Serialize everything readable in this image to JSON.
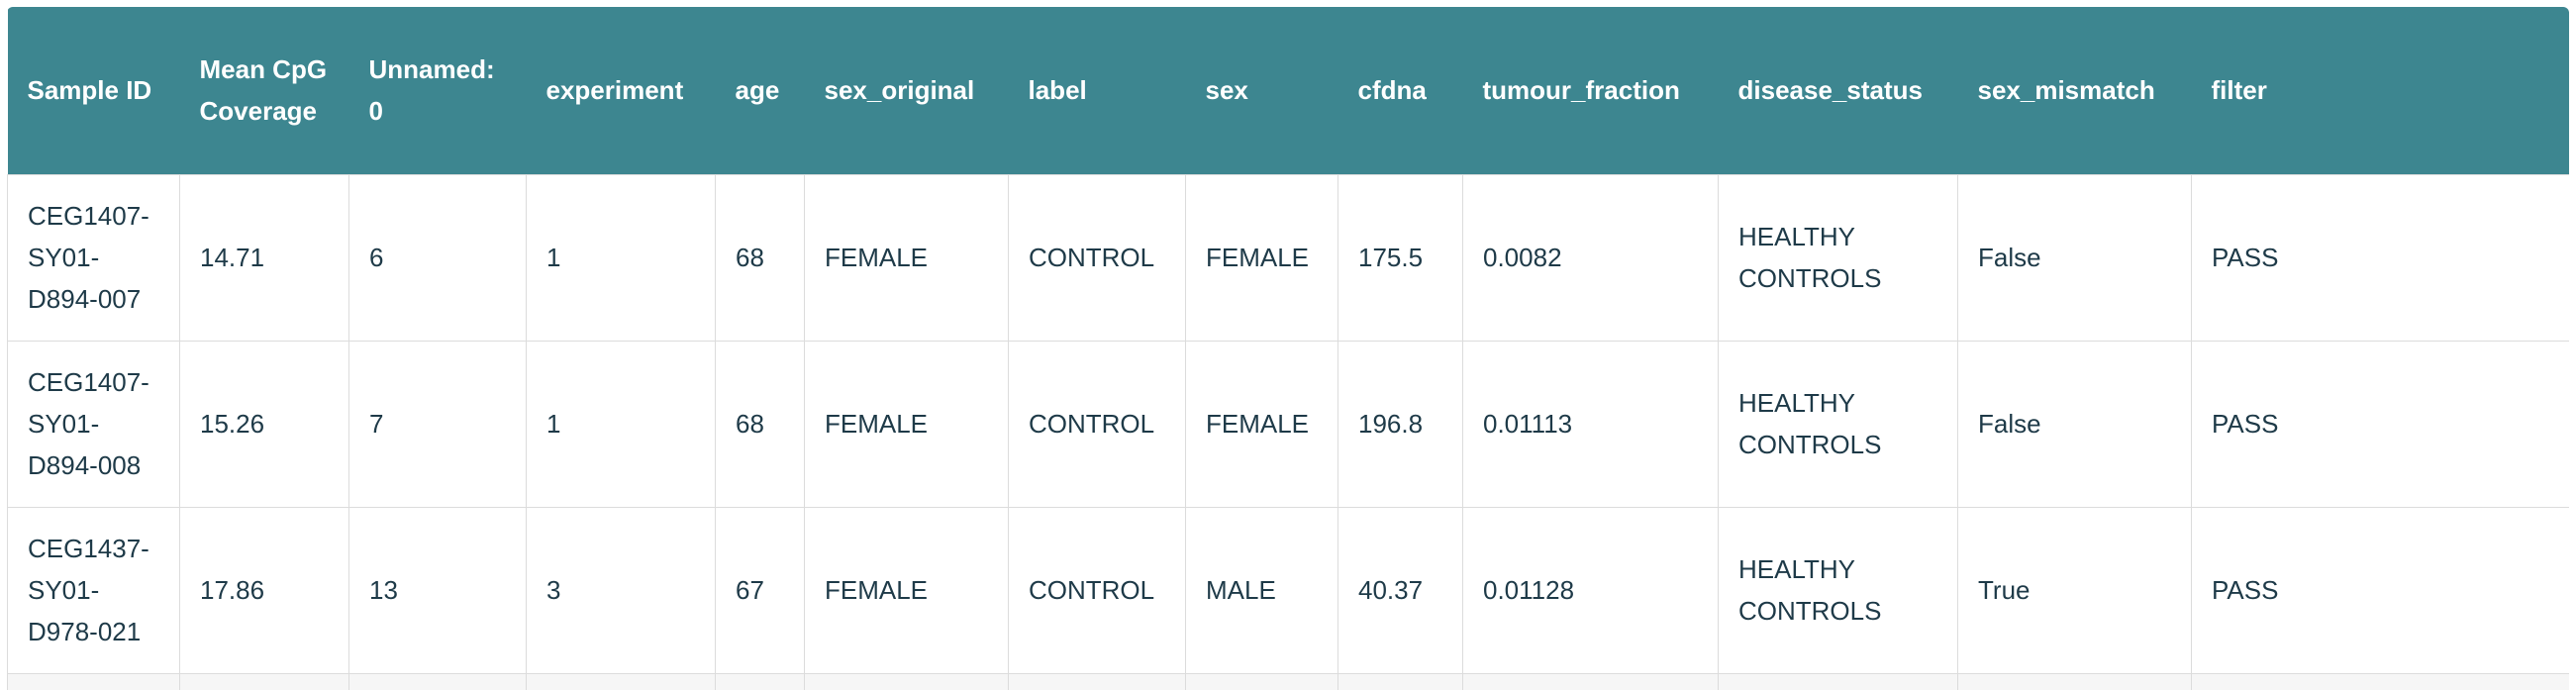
{
  "table": {
    "headers": [
      "Sample ID",
      "Mean CpG Coverage",
      "Unnamed: 0",
      "experiment",
      "age",
      "sex_original",
      "label",
      "sex",
      "cfdna",
      "tumour_fraction",
      "disease_status",
      "sex_mismatch",
      "filter"
    ],
    "rows": [
      [
        "CEG1407-SY01-D894-007",
        14.71,
        6,
        1,
        68,
        "FEMALE",
        "CONTROL",
        "FEMALE",
        175.5,
        0.0082,
        "HEALTHY CONTROLS",
        "False",
        "PASS"
      ],
      [
        "CEG1407-SY01-D894-008",
        15.26,
        7,
        1,
        68,
        "FEMALE",
        "CONTROL",
        "FEMALE",
        196.8,
        0.01113,
        "HEALTHY CONTROLS",
        "False",
        "PASS"
      ],
      [
        "CEG1437-SY01-D978-021",
        17.86,
        13,
        3,
        67,
        "FEMALE",
        "CONTROL",
        "MALE",
        40.37,
        0.01128,
        "HEALTHY CONTROLS",
        "True",
        "PASS"
      ]
    ]
  }
}
